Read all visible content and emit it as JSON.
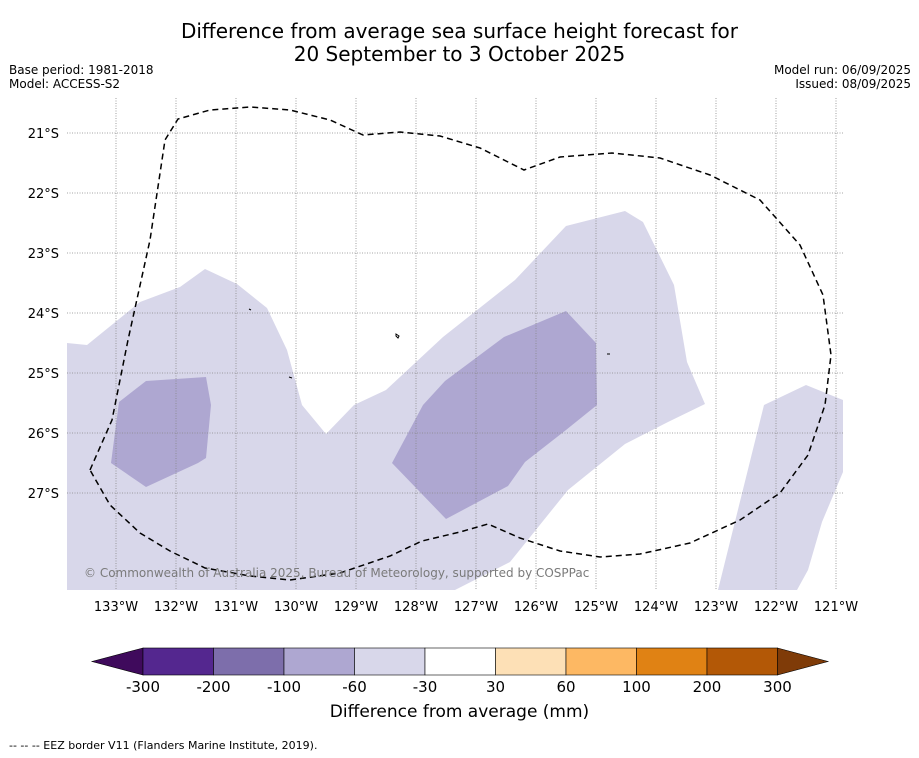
{
  "title": {
    "line1": "Difference from average sea surface height forecast for",
    "line2": "20 September to 3 October 2025"
  },
  "meta_left": {
    "base_period": "Base period: 1981-2018",
    "model": "Model: ACCESS-S2"
  },
  "meta_right": {
    "model_run": "Model run: 06/09/2025",
    "issued": "Issued: 08/09/2025"
  },
  "lat_labels": [
    "21°S",
    "22°S",
    "23°S",
    "24°S",
    "25°S",
    "26°S",
    "27°S"
  ],
  "lon_labels": [
    "133°W",
    "132°W",
    "131°W",
    "130°W",
    "129°W",
    "128°W",
    "127°W",
    "126°W",
    "125°W",
    "124°W",
    "123°W",
    "122°W",
    "121°W"
  ],
  "copyright": "© Commonwealth of Australia 2025, Bureau of Meteorology, supported by COSPPac",
  "colorbar": {
    "colors": [
      "#3f0a5c",
      "#54278f",
      "#7d6eab",
      "#aea7d1",
      "#d8d7ea",
      "#ffffff",
      "#fde0b6",
      "#fdb863",
      "#e08214",
      "#b35806",
      "#7f3b08"
    ],
    "tick_labels": [
      "-300",
      "-200",
      "-100",
      "-60",
      "-30",
      "30",
      "60",
      "100",
      "200",
      "300"
    ],
    "label": "Difference from average (mm)"
  },
  "footer": "--  --  -- EEZ border V11 (Flanders Marine Institute, 2019)."
}
